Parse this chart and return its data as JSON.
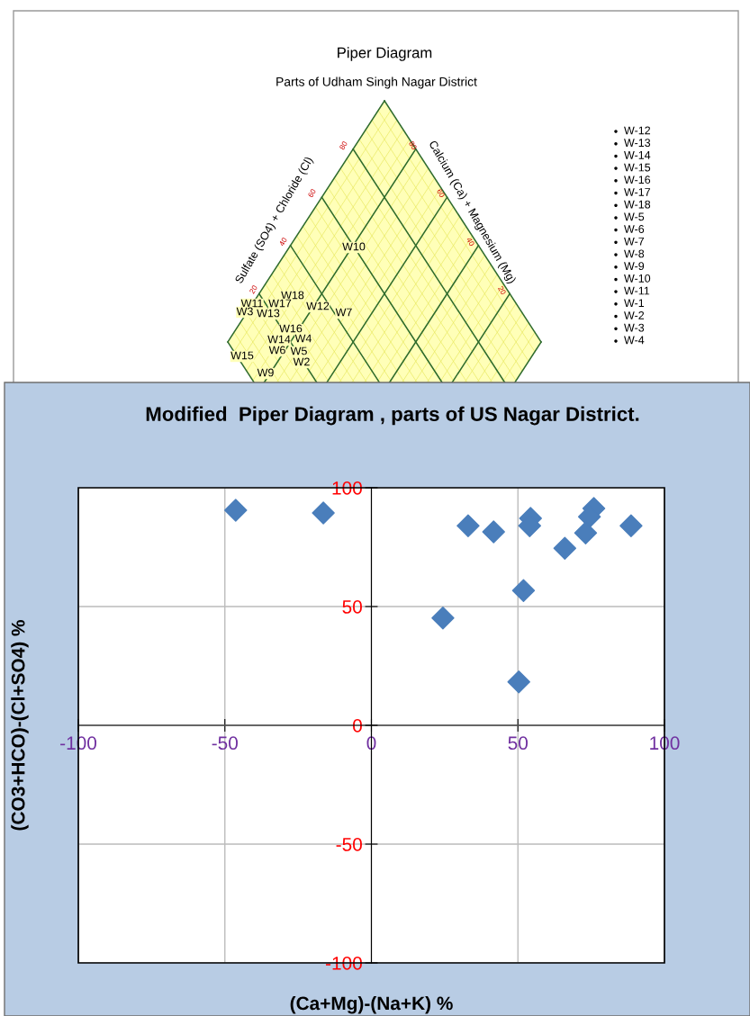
{
  "chart_data": [
    {
      "type": "other",
      "title": "Piper Diagram",
      "subtitle": "Parts of Udham Singh Nagar District",
      "annotations": [
        "Sulfate (SO4) + Chloride (Cl)",
        "Calcium (Ca) + Magnesium (Mg)",
        "80",
        "60",
        "40",
        "20",
        "80",
        "60",
        "40",
        "20",
        "W10",
        "W18",
        "W11",
        "W17",
        "W12",
        "W3",
        "W13",
        "W7",
        "W16",
        "W14",
        "W4",
        "W6",
        "W5",
        "W15",
        "W2",
        "W9",
        "W-12",
        "W-13",
        "W-14",
        "W-15",
        "W-16",
        "W-17",
        "W-18",
        "W-5",
        "W-6",
        "W-7",
        "W-8",
        "W-9",
        "W-10",
        "W-11",
        "W-1",
        "W-2",
        "W-3",
        "W-4"
      ]
    },
    {
      "type": "scatter",
      "title": "Modified  Piper Diagram , parts of US Nagar District.",
      "xlabel": "(Ca+Mg)-(Na+K) %",
      "ylabel": "(CO3+HCO)-(Cl+SO4) %",
      "x": [
        -46.3,
        -16.4,
        33.0,
        41.7,
        54.3,
        54.0,
        51.9,
        24.4,
        50.3,
        66.0,
        73.5,
        75.9,
        74.4,
        73.1,
        88.6
      ],
      "series": [
        {
          "color": "#4a7ebb",
          "values": [
            90.5,
            89.4,
            84.0,
            81.4,
            87.1,
            84.0,
            56.7,
            45.2,
            18.3,
            74.5,
            null,
            91.3,
            87.8,
            81.0,
            84.0
          ]
        }
      ],
      "xlim": [
        -100,
        100
      ],
      "ylim": [
        -100,
        100
      ],
      "xticks": [
        -100,
        -50,
        0,
        50,
        100
      ],
      "yticks": [
        -100,
        -50,
        0,
        50,
        100
      ],
      "grid": true,
      "marker": "diamond",
      "legend": false
    }
  ]
}
